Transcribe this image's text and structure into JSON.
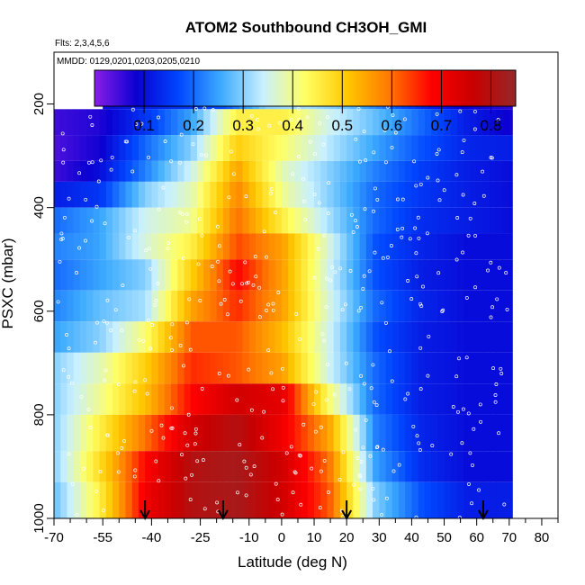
{
  "chart_data": {
    "type": "heatmap",
    "title": "ATOM2 Southbound CH3OH_GMI",
    "subtitle_flights": "Flts: 2,3,4,5,6",
    "subtitle_dates": "MMDD: 0129,0201,0203,0205,0210",
    "xlabel": "Latitude (deg N)",
    "ylabel": "PSXC (mbar)",
    "xlim": [
      -70,
      85
    ],
    "ylim": [
      1000,
      100
    ],
    "y_reversed": true,
    "x_ticks": [
      -70,
      -55,
      -40,
      -25,
      -10,
      0,
      10,
      20,
      30,
      40,
      50,
      60,
      70,
      80
    ],
    "x_minor_ticks": [
      -65,
      -60,
      -50,
      -45,
      -35,
      -30,
      -20,
      -15,
      -5,
      5,
      15,
      25,
      35,
      45,
      55,
      65,
      75,
      85
    ],
    "y_ticks": [
      200,
      400,
      600,
      800,
      1000
    ],
    "colorbar": {
      "range": [
        0.0,
        0.85
      ],
      "tick_values": [
        0.1,
        0.2,
        0.3,
        0.4,
        0.5,
        0.6,
        0.7,
        0.8
      ],
      "tick_labels": [
        "0.1",
        "0.2",
        "0.3",
        "0.4",
        "0.5",
        "0.6",
        "0.7",
        "0.8"
      ],
      "colors": [
        "#8a1ee6",
        "#0a00d2",
        "#0046ff",
        "#3caaff",
        "#c8f0ff",
        "#ffff64",
        "#ffc800",
        "#ff7800",
        "#ff0000",
        "#c80000",
        "#962828"
      ]
    },
    "lat_range": [
      -70,
      71
    ],
    "pressure_layers": [
      {
        "p_top": 190,
        "p_bot": 210,
        "lat_min": -55,
        "lat_max": 71,
        "values": [
          0.1,
          0.12,
          0.15,
          0.18,
          0.3,
          0.32,
          0.28,
          0.2,
          0.12,
          0.08,
          0.06
        ]
      },
      {
        "p_top": 210,
        "p_bot": 260,
        "lat_min": -70,
        "lat_max": 71,
        "values": [
          0.05,
          0.07,
          0.15,
          0.25,
          0.45,
          0.45,
          0.35,
          0.28,
          0.2,
          0.12,
          0.08
        ]
      },
      {
        "p_top": 260,
        "p_bot": 310,
        "lat_min": -70,
        "lat_max": 71,
        "values": [
          0.04,
          0.08,
          0.2,
          0.3,
          0.5,
          0.42,
          0.33,
          0.25,
          0.18,
          0.13,
          0.12
        ]
      },
      {
        "p_top": 310,
        "p_bot": 350,
        "lat_min": -70,
        "lat_max": 71,
        "values": [
          0.05,
          0.1,
          0.22,
          0.35,
          0.55,
          0.38,
          0.3,
          0.22,
          0.16,
          0.12,
          0.1
        ]
      },
      {
        "p_top": 350,
        "p_bot": 400,
        "lat_min": -70,
        "lat_max": 71,
        "values": [
          0.12,
          0.15,
          0.3,
          0.38,
          0.58,
          0.4,
          0.3,
          0.2,
          0.15,
          0.12,
          0.1
        ]
      },
      {
        "p_top": 400,
        "p_bot": 450,
        "lat_min": -70,
        "lat_max": 71,
        "values": [
          0.2,
          0.25,
          0.35,
          0.4,
          0.6,
          0.45,
          0.32,
          0.2,
          0.14,
          0.12,
          0.1
        ]
      },
      {
        "p_top": 450,
        "p_bot": 500,
        "lat_min": -70,
        "lat_max": 71,
        "values": [
          0.22,
          0.25,
          0.36,
          0.45,
          0.63,
          0.55,
          0.36,
          0.18,
          0.13,
          0.1,
          0.1
        ]
      },
      {
        "p_top": 500,
        "p_bot": 560,
        "lat_min": -70,
        "lat_max": 71,
        "values": [
          0.2,
          0.25,
          0.3,
          0.5,
          0.68,
          0.55,
          0.35,
          0.18,
          0.12,
          0.1,
          0.1
        ]
      },
      {
        "p_top": 560,
        "p_bot": 620,
        "lat_min": -70,
        "lat_max": 71,
        "values": [
          0.22,
          0.28,
          0.32,
          0.55,
          0.65,
          0.55,
          0.36,
          0.2,
          0.13,
          0.1,
          0.1
        ]
      },
      {
        "p_top": 620,
        "p_bot": 680,
        "lat_min": -70,
        "lat_max": 71,
        "values": [
          0.25,
          0.3,
          0.42,
          0.62,
          0.62,
          0.52,
          0.35,
          0.18,
          0.12,
          0.1,
          0.1
        ]
      },
      {
        "p_top": 680,
        "p_bot": 740,
        "lat_min": -70,
        "lat_max": 71,
        "values": [
          0.3,
          0.38,
          0.5,
          0.65,
          0.62,
          0.55,
          0.35,
          0.2,
          0.12,
          0.1,
          0.1
        ]
      },
      {
        "p_top": 740,
        "p_bot": 800,
        "lat_min": -70,
        "lat_max": 71,
        "values": [
          0.3,
          0.4,
          0.52,
          0.68,
          0.75,
          0.72,
          0.42,
          0.2,
          0.12,
          0.1,
          0.1
        ]
      },
      {
        "p_top": 800,
        "p_bot": 870,
        "lat_min": -70,
        "lat_max": 71,
        "values": [
          0.3,
          0.45,
          0.6,
          0.75,
          0.8,
          0.7,
          0.55,
          0.22,
          0.13,
          0.1,
          0.1
        ]
      },
      {
        "p_top": 870,
        "p_bot": 930,
        "lat_min": -70,
        "lat_max": 71,
        "values": [
          0.3,
          0.48,
          0.68,
          0.8,
          0.82,
          0.75,
          0.6,
          0.25,
          0.14,
          0.1,
          0.1
        ]
      },
      {
        "p_top": 930,
        "p_bot": 1010,
        "lat_min": -70,
        "lat_max": 71,
        "values": [
          0.28,
          0.45,
          0.7,
          0.8,
          0.82,
          0.75,
          0.62,
          0.3,
          0.18,
          0.12,
          0.12
        ]
      }
    ],
    "markers": {
      "type": "arrow-down",
      "latitudes": [
        -42,
        -18,
        20,
        62
      ]
    }
  }
}
